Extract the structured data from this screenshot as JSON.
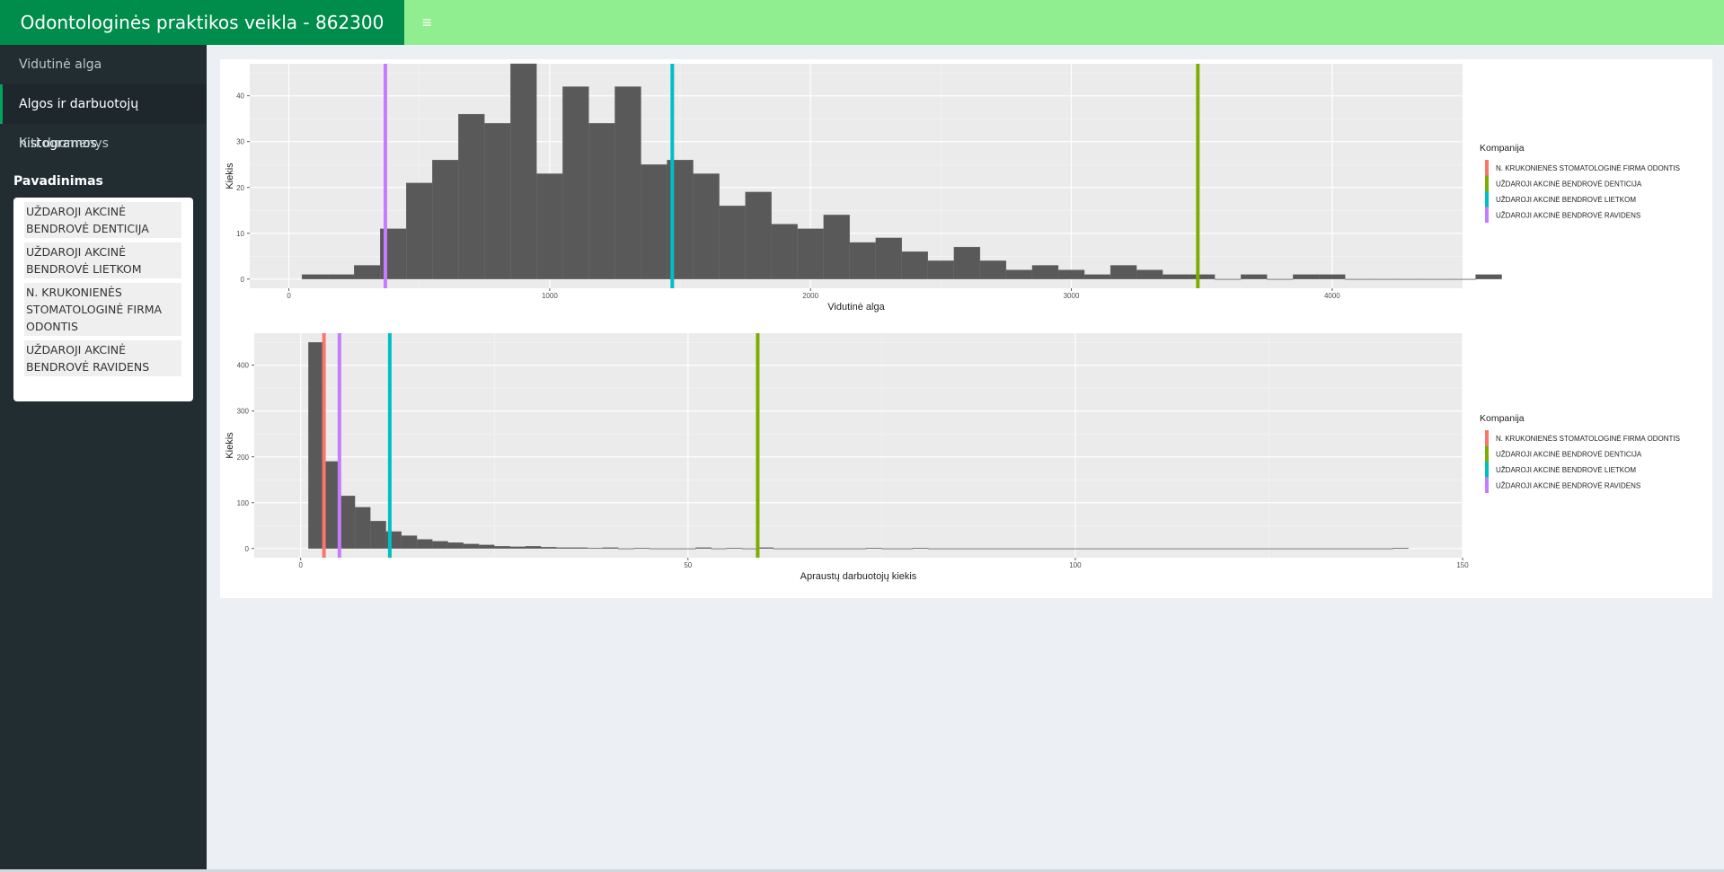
{
  "header": {
    "title": "Odontologinės praktikos veikla - 862300",
    "toggle_icon": "hamburger-icon",
    "toggle_glyph": "≡",
    "bg_color": "#90ee90",
    "logo_color": "#008d4c"
  },
  "sidebar": {
    "items": [
      {
        "label": "Vidutinė alga",
        "active": false
      },
      {
        "label": "Algos ir darbuotojų histogramos",
        "active": true
      },
      {
        "label": "Kiti duomenys",
        "active": false
      }
    ],
    "select_label": "Pavadinimas",
    "selected_options": [
      "UŽDAROJI AKCINĖ BENDROVĖ DENTICIJA",
      "UŽDAROJI AKCINĖ BENDROVĖ LIETKOM",
      "N. KRUKONIENĖS STOMATOLOGINĖ FIRMA ODONTIS",
      "UŽDAROJI AKCINĖ BENDROVĖ RAVIDENS"
    ]
  },
  "chart_data": [
    {
      "type": "bar",
      "xlabel": "Vidutinė alga",
      "ylabel": "Kiekis",
      "xlim": [
        -150,
        4500
      ],
      "ylim": [
        -2,
        47
      ],
      "x_ticks": [
        0,
        1000,
        2000,
        3000,
        4000
      ],
      "y_ticks": [
        0,
        10,
        20,
        30,
        40
      ],
      "bin_width": 100,
      "bins_start": 50,
      "counts": [
        1,
        1,
        3,
        11,
        21,
        26,
        36,
        34,
        47,
        23,
        42,
        34,
        42,
        25,
        26,
        23,
        16,
        19,
        12,
        11,
        14,
        8,
        9,
        6,
        4,
        7,
        4,
        2,
        3,
        2,
        1,
        3,
        2,
        1,
        1,
        0,
        1,
        0,
        1,
        1,
        0,
        0,
        0,
        0,
        0,
        1
      ],
      "bar_color": "#595959",
      "grid": true,
      "legend_title": "Kompanija",
      "legend_placement": "right",
      "series": [
        {
          "name": "N. KRUKONIENĖS STOMATOLOGINĖ FIRMA ODONTIS",
          "color": "#f8766d",
          "value": null
        },
        {
          "name": "UŽDAROJI AKCINĖ BENDROVĖ DENTICIJA",
          "color": "#7cae00",
          "value": 3485
        },
        {
          "name": "UŽDAROJI AKCINĖ BENDROVĖ LIETKOM",
          "color": "#00bfc4",
          "value": 1470
        },
        {
          "name": "UŽDAROJI AKCINĖ BENDROVĖ RAVIDENS",
          "color": "#c77cff",
          "value": 370
        }
      ]
    },
    {
      "type": "bar",
      "xlabel": "Apraustų darbuotojų kiekis",
      "ylabel": "Kiekis",
      "xlim": [
        -6,
        150
      ],
      "ylim": [
        -20,
        470
      ],
      "x_ticks": [
        0,
        50,
        100,
        150
      ],
      "y_ticks": [
        0,
        100,
        200,
        300,
        400
      ],
      "bin_width": 2,
      "bins_start": 1,
      "counts": [
        450,
        190,
        115,
        90,
        60,
        37,
        28,
        20,
        16,
        13,
        10,
        8,
        5,
        4,
        5,
        3,
        2,
        2,
        1,
        2,
        0,
        1,
        0,
        0,
        0,
        2,
        0,
        1,
        0,
        2,
        0,
        0,
        0,
        0,
        0,
        0,
        1,
        0,
        0,
        1,
        0,
        0,
        0,
        0,
        0,
        0,
        0,
        0,
        0,
        0,
        0,
        0,
        0,
        0,
        0,
        0,
        0,
        0,
        0,
        0,
        0,
        0,
        0,
        0,
        0,
        0,
        0,
        0,
        0,
        0,
        1
      ],
      "bar_color": "#595959",
      "grid": true,
      "legend_title": "Kompanija",
      "legend_placement": "right",
      "series": [
        {
          "name": "N. KRUKONIENĖS STOMATOLOGINĖ FIRMA ODONTIS",
          "color": "#f8766d",
          "value": 3
        },
        {
          "name": "UŽDAROJI AKCINĖ BENDROVĖ DENTICIJA",
          "color": "#7cae00",
          "value": 59
        },
        {
          "name": "UŽDAROJI AKCINĖ BENDROVĖ LIETKOM",
          "color": "#00bfc4",
          "value": 11.5
        },
        {
          "name": "UŽDAROJI AKCINĖ BENDROVĖ RAVIDENS",
          "color": "#c77cff",
          "value": 5
        }
      ]
    }
  ]
}
